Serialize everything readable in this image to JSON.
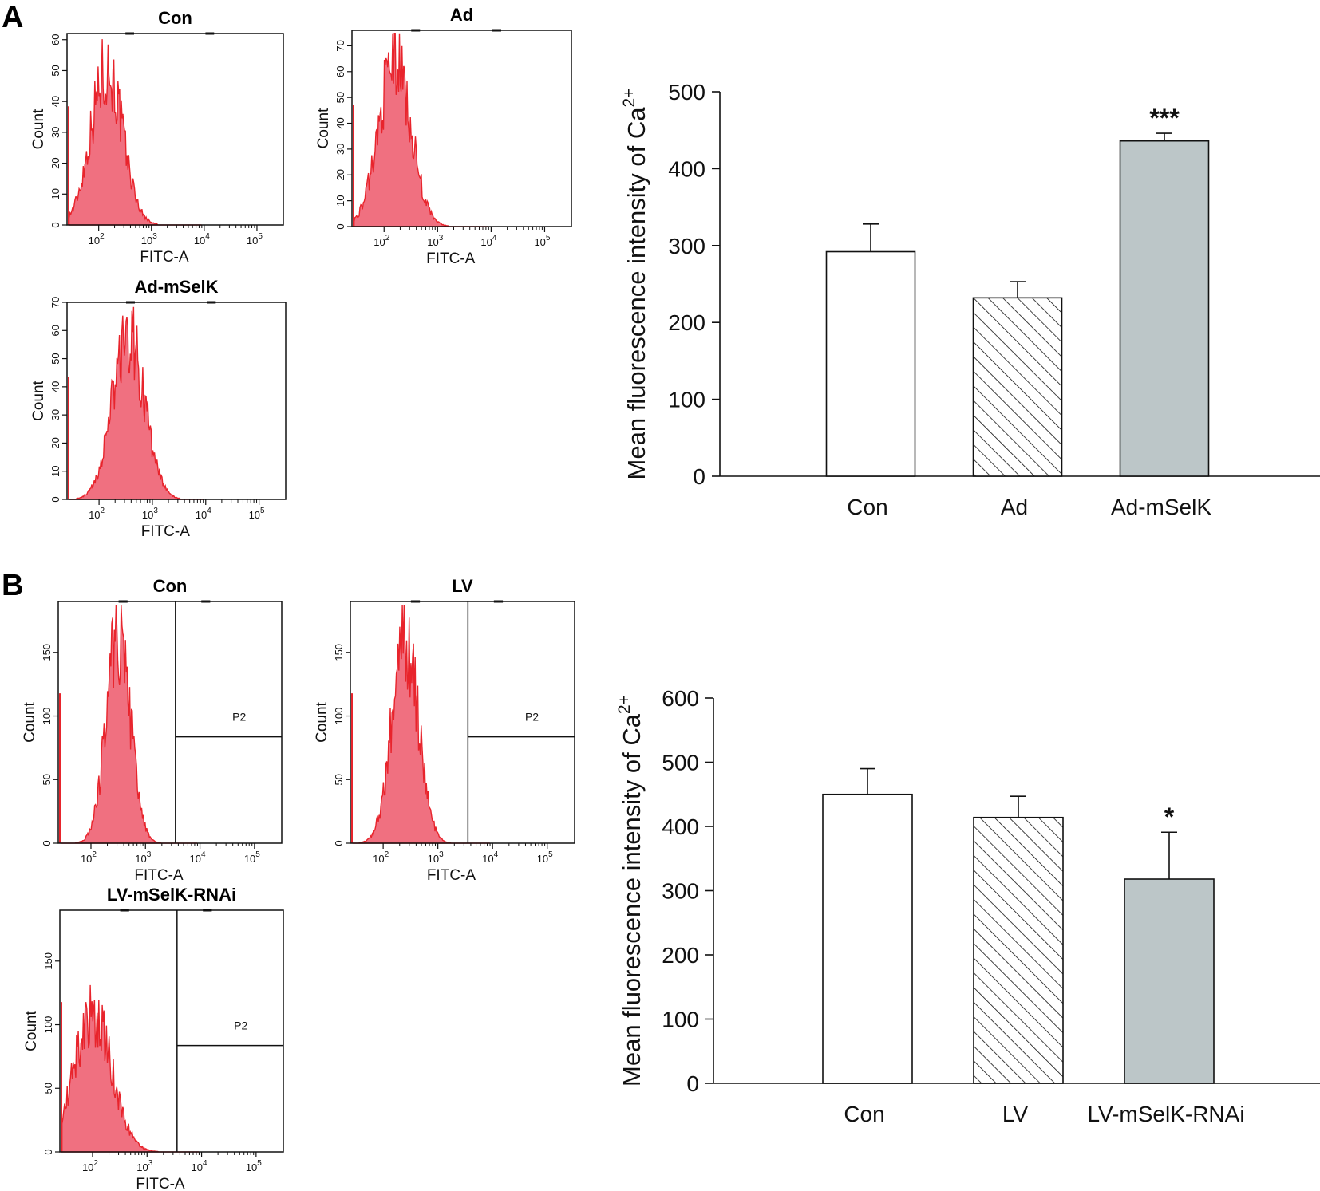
{
  "figure": {
    "panel_letters": [
      "A",
      "B"
    ],
    "histogram_x_label": "FITC-A",
    "histogram_y_label": "Count",
    "gate_label": "P2",
    "decade_labels": [
      "10",
      "10",
      "10",
      "10"
    ],
    "decade_exps": [
      "2",
      "3",
      "4",
      "5"
    ],
    "bar_ylabel_main": "Mean fluorescence intensity of Ca",
    "bar_ylabel_sup": "2+"
  },
  "histograms": [
    {
      "title": "Con",
      "panel": "A",
      "yticks": [
        0,
        10,
        20,
        30,
        40,
        50,
        60
      ],
      "ymax": 62,
      "peak": 2.15,
      "width": 0.3,
      "height": 52,
      "gate": false
    },
    {
      "title": "Ad",
      "panel": "A",
      "yticks": [
        0,
        10,
        20,
        30,
        40,
        50,
        60,
        70
      ],
      "ymax": 76,
      "peak": 2.2,
      "width": 0.3,
      "height": 66,
      "gate": false
    },
    {
      "title": "Ad-mSelK",
      "panel": "A",
      "yticks": [
        0,
        10,
        20,
        30,
        40,
        50,
        60,
        70
      ],
      "ymax": 70,
      "peak": 2.55,
      "width": 0.3,
      "height": 60,
      "gate": false
    },
    {
      "title": "Con",
      "panel": "B",
      "yticks": [
        0,
        50,
        100,
        150
      ],
      "ymax": 190,
      "peak": 2.5,
      "width": 0.22,
      "height": 172,
      "gate": true
    },
    {
      "title": "LV",
      "panel": "B",
      "yticks": [
        0,
        50,
        100,
        150
      ],
      "ymax": 190,
      "peak": 2.4,
      "width": 0.24,
      "height": 165,
      "gate": true
    },
    {
      "title": "LV-mSelK-RNAi",
      "panel": "B",
      "yticks": [
        0,
        50,
        100,
        150
      ],
      "ymax": 190,
      "peak": 2.0,
      "width": 0.35,
      "height": 110,
      "gate": true
    }
  ],
  "chart_data": [
    {
      "type": "bar",
      "panel": "A",
      "title": "",
      "xlabel": "",
      "ylabel": "Mean fluorescence intensity of Ca2+",
      "categories": [
        "Con",
        "Ad",
        "Ad-mSelK"
      ],
      "values": [
        292,
        232,
        436
      ],
      "errors": [
        36,
        21,
        10
      ],
      "significance": [
        "",
        "",
        "***"
      ],
      "fills": [
        "#ffffff",
        "hatch",
        "#bcc6c8"
      ],
      "yticks": [
        0,
        100,
        200,
        300,
        400,
        500
      ],
      "ylim": [
        0,
        500
      ],
      "grid": false,
      "legend": "none"
    },
    {
      "type": "bar",
      "panel": "B",
      "title": "",
      "xlabel": "",
      "ylabel": "Mean fluorescence intensity of Ca2+",
      "categories": [
        "Con",
        "LV",
        "LV-mSelK-RNAi"
      ],
      "values": [
        450,
        414,
        318
      ],
      "errors": [
        40,
        33,
        73
      ],
      "significance": [
        "",
        "",
        "*"
      ],
      "fills": [
        "#ffffff",
        "hatch",
        "#bcc6c8"
      ],
      "yticks": [
        0,
        100,
        200,
        300,
        400,
        500,
        600
      ],
      "ylim": [
        0,
        600
      ],
      "grid": false,
      "legend": "none"
    }
  ],
  "colors": {
    "histogram_line": "#e8242c",
    "histogram_fill": "#f07080",
    "bar_grey": "#bcc6c8",
    "axis": "#111111"
  }
}
